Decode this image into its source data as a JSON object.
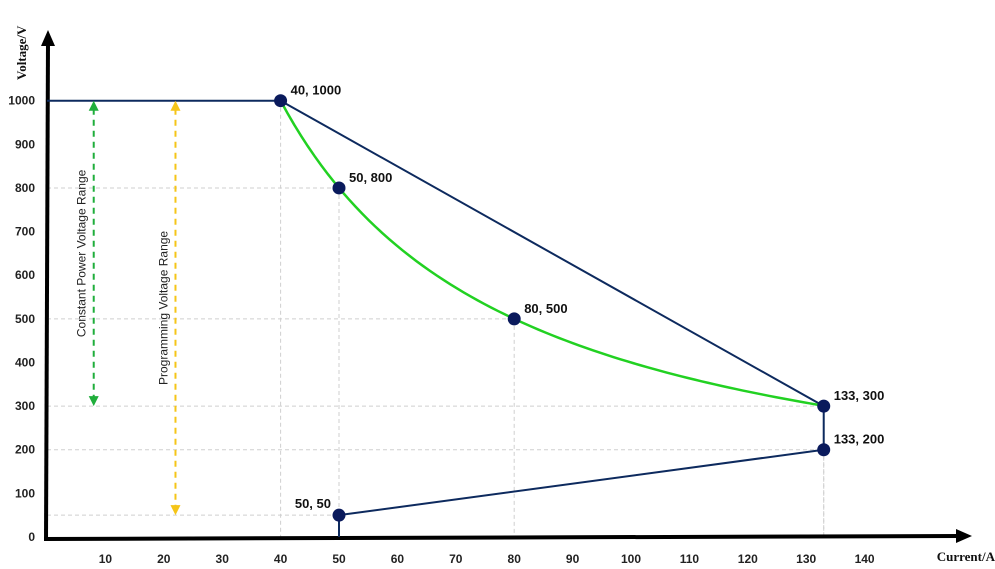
{
  "chart_data": {
    "type": "line",
    "xlabel": "Current/A",
    "ylabel": "Voltage/V",
    "xlim": [
      0,
      150
    ],
    "ylim": [
      0,
      1000
    ],
    "x_ticks": [
      10,
      20,
      30,
      40,
      50,
      60,
      70,
      80,
      90,
      100,
      110,
      120,
      130,
      140
    ],
    "y_ticks": [
      0,
      100,
      200,
      300,
      400,
      500,
      600,
      700,
      800,
      900,
      1000
    ],
    "grid": "dashed guides at key points",
    "boundary": {
      "color": "#0d2a5e",
      "points": [
        {
          "x": 0,
          "y": 1000
        },
        {
          "x": 40,
          "y": 1000
        },
        {
          "x": 133,
          "y": 300
        },
        {
          "x": 133,
          "y": 200
        },
        {
          "x": 50,
          "y": 50
        },
        {
          "x": 50,
          "y": 0
        }
      ]
    },
    "constant_power_curve": {
      "color": "#22d122",
      "power": 40000,
      "x_start": 40,
      "x_end": 133
    },
    "points": [
      {
        "x": 40,
        "y": 1000,
        "label": "40, 1000"
      },
      {
        "x": 50,
        "y": 800,
        "label": "50, 800"
      },
      {
        "x": 80,
        "y": 500,
        "label": "80, 500"
      },
      {
        "x": 133,
        "y": 300,
        "label": "133, 300"
      },
      {
        "x": 133,
        "y": 200,
        "label": "133, 200"
      },
      {
        "x": 50,
        "y": 50,
        "label": "50, 50"
      }
    ],
    "ranges": [
      {
        "label": "Constant Power Voltage Range",
        "x": 8,
        "y_from": 300,
        "y_to": 1000,
        "color": "#1fae3b"
      },
      {
        "label": "Programming Voltage Range",
        "x": 22,
        "y_from": 50,
        "y_to": 1000,
        "color": "#f5c518"
      }
    ]
  }
}
